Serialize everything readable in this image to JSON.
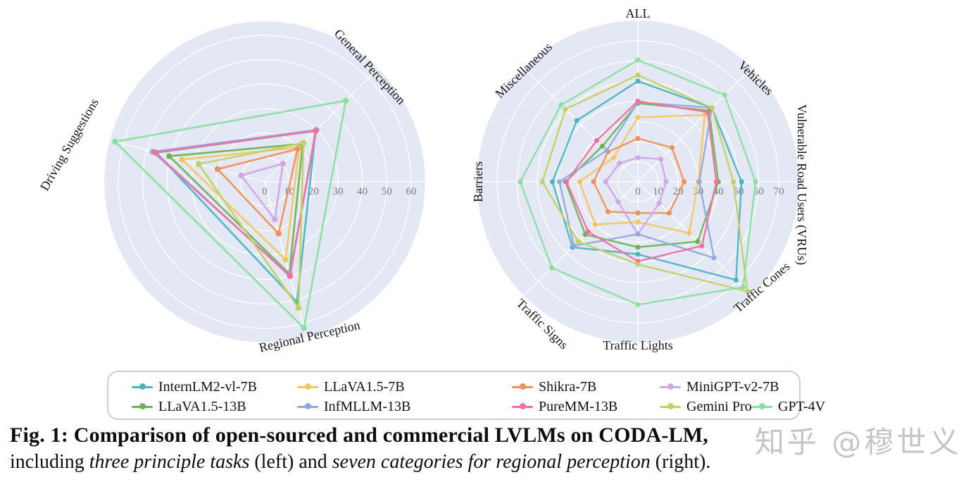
{
  "colors": {
    "disc": "#e4e7f4",
    "grid": "#ffffff",
    "tick_label": "#787878",
    "axis_label": "#151515"
  },
  "watermark": "知乎 @穆世义",
  "caption": {
    "line1": "Fig. 1: Comparison of open-sourced and commercial LVLMs on CODA-LM,",
    "line2_segments": [
      {
        "text": "including ",
        "style": "normal"
      },
      {
        "text": "three principle tasks",
        "style": "italic"
      },
      {
        "text": " (left) and ",
        "style": "normal"
      },
      {
        "text": "seven categories for regional perception",
        "style": "italic"
      },
      {
        "text": " (right).",
        "style": "normal"
      }
    ]
  },
  "legend": {
    "rows": [
      [
        {
          "label": "InternLM2-vl-7B",
          "color": "#4ab5bf"
        },
        {
          "label": "LLaVA1.5-7B",
          "color": "#f3c760"
        },
        {
          "label": "Shikra-7B",
          "color": "#f09158"
        },
        {
          "label": "MiniGPT-v2-7B",
          "color": "#d0a7e8"
        }
      ],
      [
        {
          "label": "LLaVA1.5-13B",
          "color": "#6cb453"
        },
        {
          "label": "InfMLLM-13B",
          "color": "#90aade"
        },
        {
          "label": "PureMM-13B",
          "color": "#f170a3"
        },
        {
          "label": "Gemini Pro",
          "color": "#c3d161"
        },
        {
          "label": "GPT-4V",
          "color": "#8adf9f"
        }
      ]
    ]
  },
  "chart_data": [
    {
      "type": "radar",
      "title": "Three principle tasks",
      "axes": [
        "General Perception",
        "Driving Suggestions",
        "Regional Perception"
      ],
      "axis_angles_deg": [
        45,
        165,
        285
      ],
      "r_ticks": [
        0,
        10,
        20,
        30,
        40,
        50,
        60
      ],
      "r_max_display": 65.7,
      "grid": true,
      "series": [
        {
          "name": "InternLM2-vl-7B",
          "color": "#4ab5bf",
          "values": [
            29.5,
            46,
            51
          ]
        },
        {
          "name": "LLaVA1.5-7B",
          "color": "#f3c760",
          "values": [
            20,
            35,
            33
          ]
        },
        {
          "name": "Shikra-7B",
          "color": "#f09158",
          "values": [
            19,
            20,
            22
          ]
        },
        {
          "name": "MiniGPT-v2-7B",
          "color": "#d0a7e8",
          "values": [
            10.5,
            10,
            16
          ]
        },
        {
          "name": "LLaVA1.5-13B",
          "color": "#6cb453",
          "values": [
            22,
            40.5,
            39
          ]
        },
        {
          "name": "InfMLLM-13B",
          "color": "#90aade",
          "values": [
            30,
            47.5,
            39.5
          ]
        },
        {
          "name": "PureMM-13B",
          "color": "#f170a3",
          "values": [
            29.5,
            46.5,
            40
          ]
        },
        {
          "name": "Gemini Pro",
          "color": "#c3d161",
          "values": [
            22.5,
            28,
            53.5
          ]
        },
        {
          "name": "GPT-4V",
          "color": "#8adf9f",
          "values": [
            47,
            63.5,
            62
          ]
        }
      ]
    },
    {
      "type": "radar",
      "title": "Seven categories for regional perception",
      "axes": [
        "ALL",
        "Vehicles",
        "Vulnerable Road Users (VRUs)",
        "Traffic Cones",
        "Traffic Lights",
        "Traffic Signs",
        "Barriers",
        "Miscellaneous"
      ],
      "axis_angles_deg": [
        90,
        45,
        0,
        315,
        270,
        225,
        180,
        135
      ],
      "r_ticks": [
        0,
        10,
        20,
        30,
        40,
        50,
        60,
        70
      ],
      "r_max_display": 80,
      "grid": true,
      "series": [
        {
          "name": "InternLM2-vl-7B",
          "color": "#4ab5bf",
          "values": [
            50,
            52,
            51.5,
            69,
            36,
            46,
            42.5,
            43
          ]
        },
        {
          "name": "LLaVA1.5-7B",
          "color": "#f3c760",
          "values": [
            32,
            47,
            30,
            36,
            20,
            30,
            29,
            17
          ]
        },
        {
          "name": "Shikra-7B",
          "color": "#f09158",
          "values": [
            21.5,
            24,
            23,
            22,
            15.5,
            21,
            22,
            21
          ]
        },
        {
          "name": "MiniGPT-v2-7B",
          "color": "#d0a7e8",
          "values": [
            12,
            16,
            14,
            15,
            26,
            14,
            16,
            13
          ]
        },
        {
          "name": "LLaVA1.5-13B",
          "color": "#6cb453",
          "values": [
            39,
            50,
            40,
            42,
            32.5,
            37,
            36,
            25
          ]
        },
        {
          "name": "InfMLLM-13B",
          "color": "#90aade",
          "values": [
            39.5,
            52,
            30.5,
            53.5,
            26,
            45,
            39,
            22
          ]
        },
        {
          "name": "PureMM-13B",
          "color": "#f170a3",
          "values": [
            40,
            49,
            39,
            45,
            39.5,
            35,
            35.5,
            29
          ]
        },
        {
          "name": "Gemini Pro",
          "color": "#c3d161",
          "values": [
            53,
            52,
            47.5,
            77,
            41,
            42,
            47.5,
            51
          ]
        },
        {
          "name": "GPT-4V",
          "color": "#8adf9f",
          "values": [
            60.5,
            61,
            58.5,
            74,
            61,
            60.5,
            58.5,
            54
          ]
        }
      ]
    }
  ]
}
